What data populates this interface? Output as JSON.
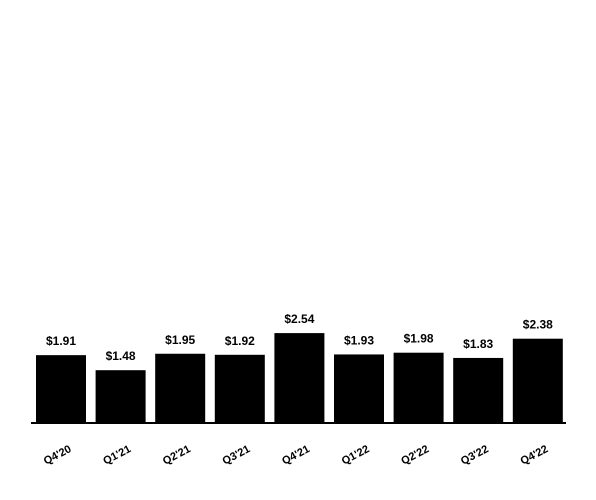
{
  "chart_data": {
    "type": "bar",
    "categories": [
      "Q4'20",
      "Q1'21",
      "Q2'21",
      "Q3'21",
      "Q4'21",
      "Q1'22",
      "Q2'22",
      "Q3'22",
      "Q4'22"
    ],
    "values": [
      1.91,
      1.48,
      1.95,
      1.92,
      2.54,
      1.93,
      1.98,
      1.83,
      2.38
    ],
    "value_labels": [
      "$1.91",
      "$1.48",
      "$1.95",
      "$1.92",
      "$2.54",
      "$1.93",
      "$1.98",
      "$1.83",
      "$2.38"
    ],
    "title": "",
    "xlabel": "",
    "ylabel": "",
    "bar_color": "#000000",
    "grid": false
  }
}
